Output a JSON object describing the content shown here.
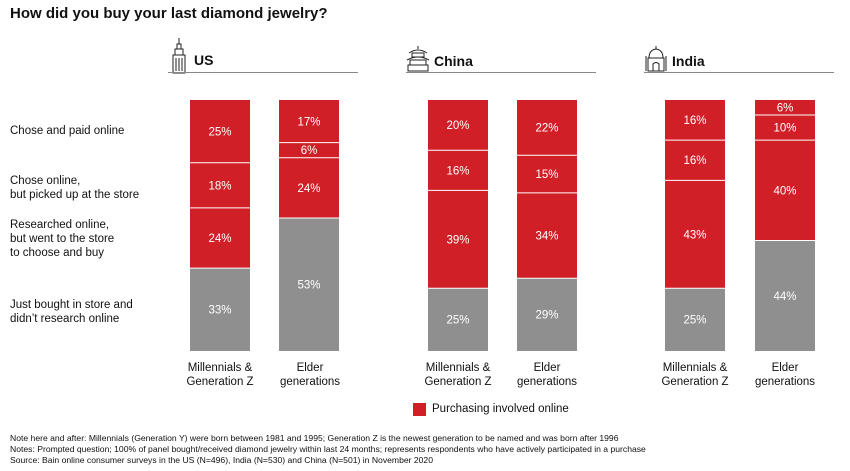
{
  "title": "How did you buy your last diamond jewelry?",
  "row_labels": [
    "Chose and paid online",
    "Chose online,\nbut picked up at the store",
    "Researched online,\nbut went to the store\nto choose and buy",
    "Just bought in store and\ndidn’t research online"
  ],
  "legend": {
    "label": "Purchasing involved online",
    "color": "#d01f27"
  },
  "colors": {
    "online": "#d01f27",
    "store": "#8f8f8f",
    "label_text": "#ffffff"
  },
  "countries": [
    {
      "name": "US",
      "icon": "skyscraper-icon"
    },
    {
      "name": "China",
      "icon": "temple-icon"
    },
    {
      "name": "India",
      "icon": "palace-icon"
    }
  ],
  "notes": [
    "Note here and after: Millennials (Generation Y) were born between 1981 and 1995; Generation Z is the newest generation to be named and was born after 1996",
    "Notes: Prompted question; 100% of panel bought/received diamond jewelry within last 24 months; represents respondents who have actively participated in a purchase",
    "Source: Bain online consumer surveys in the US (N=496), India (N=530) and China (N=501) in November 2020"
  ],
  "chart_data": {
    "type": "bar",
    "stacked": true,
    "percent": true,
    "segment_order_bottom_to_top": [
      "Just bought in store and didn’t research online",
      "Researched online, but went to the store to choose and buy",
      "Chose online, but picked up at the store",
      "Chose and paid online"
    ],
    "categories": [
      "Millennials &\nGeneration Z",
      "Elder\ngenerations"
    ],
    "panels": [
      {
        "country": "US",
        "bars": [
          {
            "category": "Millennials &\nGeneration Z",
            "values": [
              33,
              24,
              18,
              25
            ]
          },
          {
            "category": "Elder\ngenerations",
            "values": [
              53,
              24,
              6,
              17
            ]
          }
        ]
      },
      {
        "country": "China",
        "bars": [
          {
            "category": "Millennials &\nGeneration Z",
            "values": [
              25,
              39,
              16,
              20
            ]
          },
          {
            "category": "Elder\ngenerations",
            "values": [
              29,
              34,
              15,
              22
            ]
          }
        ]
      },
      {
        "country": "India",
        "bars": [
          {
            "category": "Millennials &\nGeneration Z",
            "values": [
              25,
              43,
              16,
              16
            ]
          },
          {
            "category": "Elder\ngenerations",
            "values": [
              44,
              40,
              10,
              6
            ]
          }
        ]
      }
    ],
    "ylim": [
      0,
      100
    ],
    "grid": false
  }
}
